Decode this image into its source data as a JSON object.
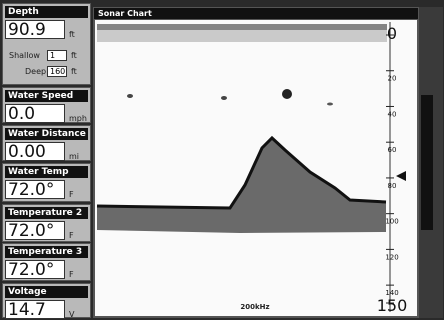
{
  "panels": [
    {
      "title": "Depth",
      "value": "90.9",
      "unit": "ft"
    },
    {
      "title": "Water Speed",
      "value": "0.0",
      "unit": "mph"
    },
    {
      "title": "Water Distance",
      "value": "0.00",
      "unit": "mi"
    },
    {
      "title": "Water Temp",
      "value": "72.0°",
      "unit": "F"
    },
    {
      "title": "Temperature 2",
      "value": "72.0°",
      "unit": "F"
    },
    {
      "title": "Temperature 3",
      "value": "72.0°",
      "unit": "F"
    },
    {
      "title": "Voltage",
      "value": "14.7",
      "unit": "V"
    }
  ],
  "depth_limits": {
    "shallow_label": "Shallow",
    "shallow": "1",
    "deep_label": "Deep",
    "deep": "160",
    "unit": "ft"
  },
  "sonar": {
    "title": "Sonar Chart",
    "frequency": "200kHz",
    "ylim": [
      0,
      150
    ],
    "yticks": [
      0,
      20,
      40,
      60,
      80,
      100,
      120,
      140,
      150
    ]
  }
}
